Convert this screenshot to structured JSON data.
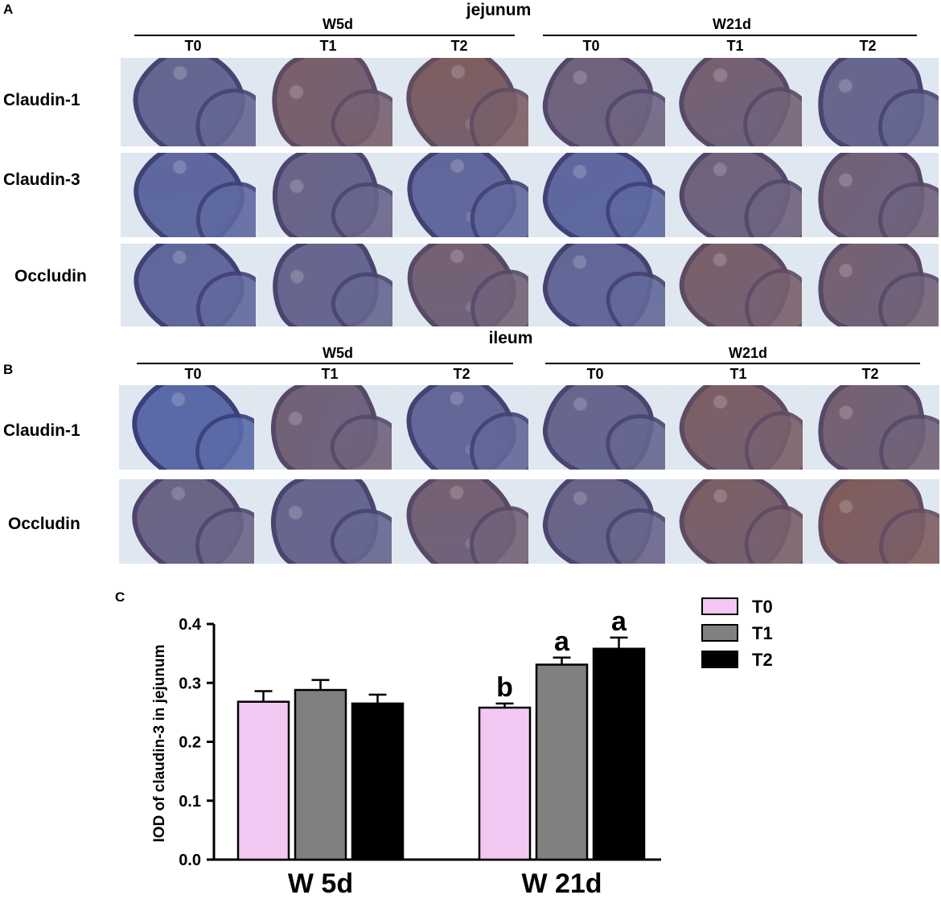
{
  "panels": {
    "a": {
      "letter": "A",
      "tissue": "jejunum",
      "groups": [
        "W5d",
        "W21d"
      ],
      "columns": [
        "T0",
        "T1",
        "T2",
        "T0",
        "T1",
        "T2"
      ],
      "rows": [
        "Claudin-1",
        "Claudin-3",
        "Occludin"
      ]
    },
    "b": {
      "letter": "B",
      "tissue": "ileum",
      "groups": [
        "W5d",
        "W21d"
      ],
      "columns": [
        "T0",
        "T1",
        "T2",
        "T0",
        "T1",
        "T2"
      ],
      "rows": [
        "Claudin-1",
        "Occludin"
      ]
    },
    "c": {
      "letter": "C"
    }
  },
  "stain_colors": {
    "background": "#dfe7f1",
    "blue_tissue": "#5a6aa8",
    "brown_tissue": "#8a5a48",
    "rim": "#3c3f78"
  },
  "chart_data": {
    "type": "bar",
    "categories": [
      "W 5d",
      "W 21d"
    ],
    "series": [
      {
        "name": "T0",
        "color": "#f2c8f2",
        "values": [
          0.268,
          0.258
        ],
        "errors": [
          0.018,
          0.007
        ],
        "letters": [
          "",
          "b"
        ]
      },
      {
        "name": "T1",
        "color": "#808080",
        "values": [
          0.288,
          0.331
        ],
        "errors": [
          0.017,
          0.012
        ],
        "letters": [
          "",
          "a"
        ]
      },
      {
        "name": "T2",
        "color": "#000000",
        "values": [
          0.265,
          0.358
        ],
        "errors": [
          0.015,
          0.019
        ],
        "letters": [
          "",
          "a"
        ]
      }
    ],
    "ylabel": "IOD of claudin-3 in jejunum",
    "ylim": [
      0.0,
      0.4
    ],
    "yticks": [
      "0.0",
      "0.1",
      "0.2",
      "0.3",
      "0.4"
    ],
    "legend_position": "top-right"
  }
}
